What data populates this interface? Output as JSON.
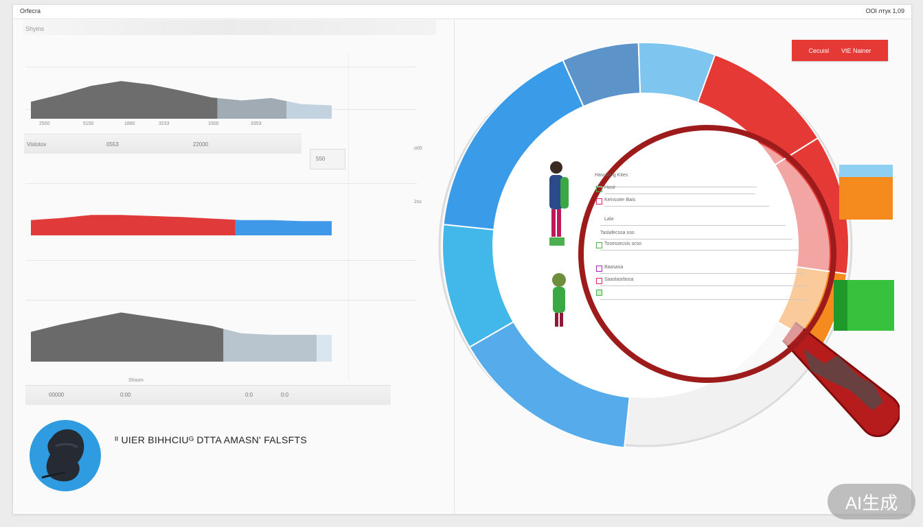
{
  "window": {
    "title": "Orfecra",
    "status": "OOl лтук 1,09"
  },
  "left_panel": {
    "section_title": "Shyins",
    "chart1_ticks": [
      "2550",
      "5150",
      "1880",
      "3233",
      "1500",
      "3353"
    ],
    "chart1_bottom": [
      "Vistotov",
      "0553",
      "22000",
      "550"
    ],
    "side_labels": [
      "o00",
      "2ss"
    ],
    "chart3_label": "Shsom",
    "chart3_ticks": [
      "00000",
      "0:00",
      "0:0",
      "0:0"
    ]
  },
  "banner": {
    "text": "ᴵᴵ UIER BIHHCIUᴳ DTTA AMASN' FALSFTS"
  },
  "badge": {
    "left": "Cecuisl",
    "right": "VtE  Nainer"
  },
  "list_panel": {
    "header": "Hascfosig Kites",
    "rows": [
      "Hasir",
      "Keinsuter   Bais",
      "Lala",
      "Taslafecssa oso",
      "Tosessecsis scso",
      "Baasasa",
      "Saaslasrbosa"
    ]
  },
  "watermark": "AI生成",
  "chart_data": [
    {
      "type": "area",
      "title": "",
      "x": [
        0,
        1,
        2,
        3,
        4,
        5,
        6,
        7,
        8,
        9,
        10
      ],
      "series": [
        {
          "values": [
            28,
            40,
            54,
            62,
            56,
            46,
            35,
            30,
            34,
            24,
            22
          ]
        }
      ],
      "colors": [
        "#6d6d6d",
        "#a0abb4",
        "#c2d3df"
      ]
    },
    {
      "type": "area",
      "title": "",
      "x": [
        0,
        1,
        2,
        3,
        4,
        5,
        6,
        7,
        8,
        9,
        10
      ],
      "series": [
        {
          "values": [
            30,
            34,
            40,
            40,
            38,
            36,
            33,
            30,
            30,
            28,
            28
          ]
        }
      ],
      "colors": [
        "#e03a3a",
        "#3f98e8"
      ]
    },
    {
      "type": "area",
      "title": "",
      "x": [
        0,
        1,
        2,
        3,
        4,
        5,
        6,
        7,
        8,
        9,
        10
      ],
      "series": [
        {
          "values": [
            40,
            50,
            58,
            66,
            60,
            54,
            48,
            38,
            36,
            36,
            36
          ]
        }
      ],
      "colors": [
        "#6a6a6a",
        "#b8c5ce",
        "#d8e6f0"
      ]
    }
  ],
  "donut": {
    "segments": [
      {
        "color": "#e53935"
      },
      {
        "color": "#e53935"
      },
      {
        "color": "#f58a1f"
      },
      {
        "color": "#42b8ea"
      },
      {
        "color": "#3a9be8"
      },
      {
        "color": "#5c93c8"
      },
      {
        "color": "#56acea"
      },
      {
        "color": "#7ec6f0"
      }
    ]
  },
  "icons": [
    "person-icon",
    "magnifier-icon",
    "avatar-icon"
  ]
}
